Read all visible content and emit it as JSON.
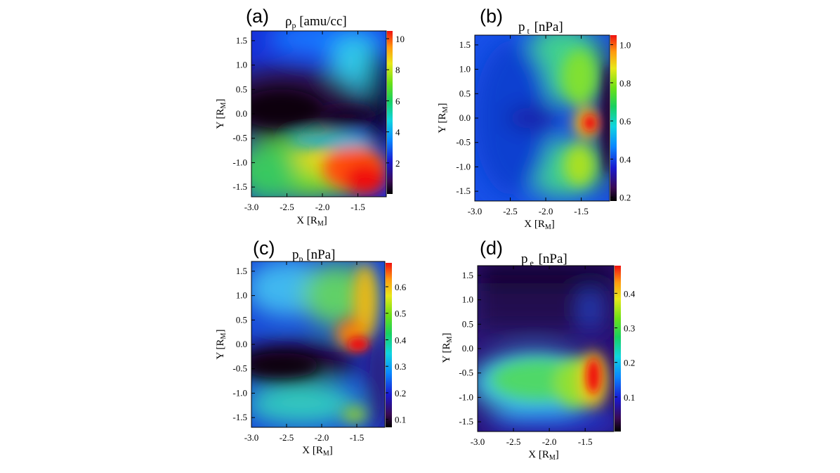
{
  "chart_data": [
    {
      "type": "heatmap",
      "panel_label": "(a)",
      "title": "ρp [amu/cc]",
      "title_parts": {
        "base": "ρ",
        "sub": "p",
        "rest": " [amu/cc]"
      },
      "xlabel": {
        "base": "X [R",
        "sub": "M",
        "rest": "]"
      },
      "ylabel": {
        "base": "Y [R",
        "sub": "M",
        "rest": "]"
      },
      "xticks": [
        "-3.0",
        "-2.5",
        "-2.0",
        "-1.5"
      ],
      "yticks": [
        "1.5",
        "1.0",
        "0.5",
        "0.0",
        "-0.5",
        "-1.0",
        "-1.5"
      ],
      "xlim": [
        -3.0,
        -1.1
      ],
      "ylim": [
        -1.7,
        1.7
      ],
      "colorbar": {
        "ticks": [
          "10",
          "8",
          "6",
          "4",
          "2"
        ],
        "range": [
          0,
          10.5
        ],
        "colormap": "rainbow"
      },
      "features": "Low-density lobe in the center; dense sheet at bottom-right peaking near X=-1.4, Y=-1.4."
    },
    {
      "type": "heatmap",
      "panel_label": "(b)",
      "title": "p t [nPa]",
      "title_parts": {
        "base": "p",
        "sub": "t",
        "rest": " [nPa]"
      },
      "xlabel": {
        "base": "X [R",
        "sub": "M",
        "rest": "]"
      },
      "ylabel": {
        "base": "Y [R",
        "sub": "M",
        "rest": "]"
      },
      "xticks": [
        "-3.0",
        "-2.5",
        "-2.0",
        "-1.5"
      ],
      "yticks": [
        "1.5",
        "1.0",
        "0.5",
        "0.0",
        "-0.5",
        "-1.0",
        "-1.5"
      ],
      "xlim": [
        -3.0,
        -1.1
      ],
      "ylim": [
        -1.7,
        1.7
      ],
      "colorbar": {
        "ticks": [
          "1.0",
          "0.8",
          "0.6",
          "0.4",
          "0.2"
        ],
        "range": [
          0.18,
          1.05
        ],
        "colormap": "rainbow"
      },
      "features": "Total pressure peaks near X=-1.3, Y=-0.1."
    },
    {
      "type": "heatmap",
      "panel_label": "(c)",
      "title": "pp [nPa]",
      "title_parts": {
        "base": "p",
        "sub": "p",
        "rest": " [nPa]"
      },
      "xlabel": {
        "base": "X [R",
        "sub": "M",
        "rest": "]"
      },
      "ylabel": {
        "base": "Y [R",
        "sub": "M",
        "rest": "]"
      },
      "xticks": [
        "-3.0",
        "-2.5",
        "-2.0",
        "-1.5"
      ],
      "yticks": [
        "1.5",
        "1.0",
        "0.5",
        "0.0",
        "-0.5",
        "-1.0",
        "-1.5"
      ],
      "xlim": [
        -3.0,
        -1.1
      ],
      "ylim": [
        -1.7,
        1.7
      ],
      "colorbar": {
        "ticks": [
          "0.6",
          "0.5",
          "0.4",
          "0.3",
          "0.2",
          "0.1"
        ],
        "range": [
          0.07,
          0.69
        ],
        "colormap": "rainbow"
      },
      "features": "Proton pressure peaks near X=-1.4, Y=-0.05."
    },
    {
      "type": "heatmap",
      "panel_label": "(d)",
      "title": "p e [nPa]",
      "title_parts": {
        "base": "p",
        "sub": "e",
        "rest": " [nPa]"
      },
      "xlabel": {
        "base": "X [R",
        "sub": "M",
        "rest": "]"
      },
      "ylabel": {
        "base": "Y [R",
        "sub": "M",
        "rest": "]"
      },
      "xticks": [
        "-3.0",
        "-2.5",
        "-2.0",
        "-1.5"
      ],
      "yticks": [
        "1.5",
        "1.0",
        "0.5",
        "0.0",
        "-0.5",
        "-1.0",
        "-1.5"
      ],
      "xlim": [
        -3.0,
        -1.1
      ],
      "ylim": [
        -1.7,
        1.7
      ],
      "colorbar": {
        "ticks": [
          "0.4",
          "0.3",
          "0.2",
          "0.1"
        ],
        "range": [
          0.0,
          0.48
        ],
        "colormap": "rainbow"
      },
      "features": "Electron pressure enhanced in Y<0 band, peak near X=-1.4, Y=-0.6."
    }
  ]
}
